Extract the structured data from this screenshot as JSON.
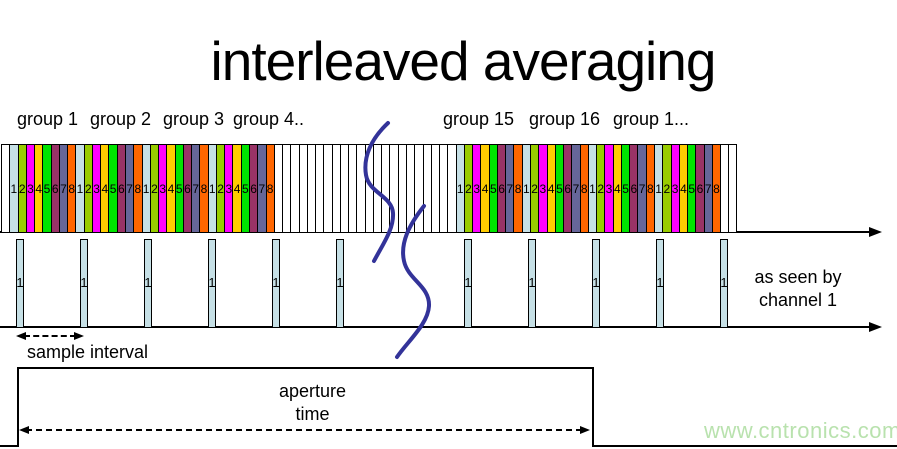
{
  "title": "interleaved averaging",
  "group_labels_left": [
    "group 1",
    "group 2",
    "group 3",
    "group 4.."
  ],
  "group_labels_right": [
    "group 15",
    "group 16",
    "group 1..."
  ],
  "strip": {
    "channel_numbers": [
      "1",
      "2",
      "3",
      "4",
      "5",
      "6",
      "7",
      "8"
    ],
    "channel_colors": [
      "#c6e0e6",
      "#99cc00",
      "#ff00ff",
      "#ffcc00",
      "#00e400",
      "#993366",
      "#666699",
      "#ff6600"
    ],
    "segments": [
      {
        "kind": "blank",
        "count": 1
      },
      {
        "kind": "groups",
        "count": 4
      },
      {
        "kind": "blank",
        "count": 22
      },
      {
        "kind": "groups",
        "count": 4
      },
      {
        "kind": "blank",
        "count": 2
      }
    ]
  },
  "channel1_row": {
    "bar_label": "1",
    "bar_fill": "#c6e0e6",
    "bar_positions": [
      16,
      80,
      144,
      208,
      272,
      336,
      464,
      528,
      592,
      656,
      720
    ],
    "caption_line1": "as seen by",
    "caption_line2": "channel 1"
  },
  "sample_interval_label": "sample interval",
  "aperture_label_line1": "aperture",
  "aperture_label_line2": "time",
  "watermark": "www.cntronics.com",
  "colors": {
    "break_stroke": "#333399",
    "watermark_green": "#b9e2ae"
  }
}
